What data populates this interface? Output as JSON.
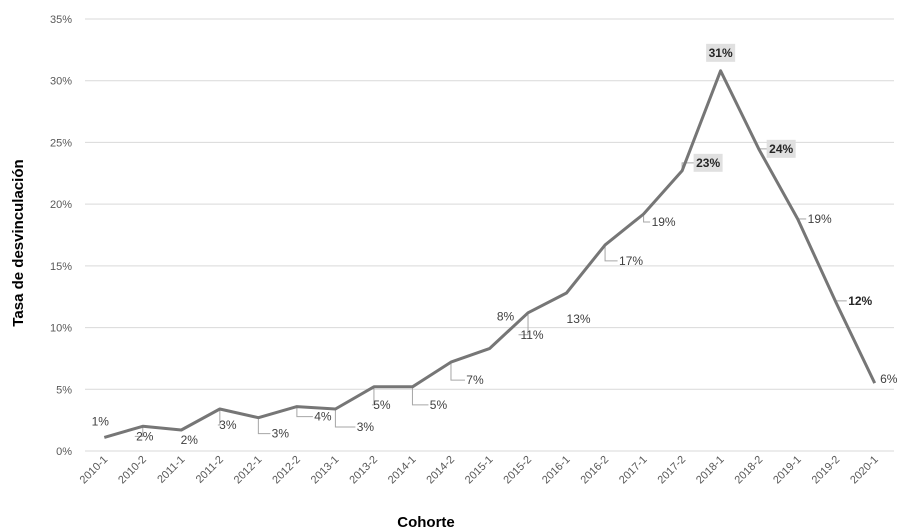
{
  "chart_data": {
    "type": "line",
    "title": "",
    "xlabel": "Cohorte",
    "ylabel": "Tasa de desvinculación",
    "ylim": [
      0,
      35
    ],
    "y_ticks": [
      "0%",
      "5%",
      "10%",
      "15%",
      "20%",
      "25%",
      "30%",
      "35%"
    ],
    "grid": true,
    "categories": [
      "2010-1",
      "2010-2",
      "2011-1",
      "2011-2",
      "2012-1",
      "2012-2",
      "2013-1",
      "2013-2",
      "2014-1",
      "2014-2",
      "2015-1",
      "2015-2",
      "2016-1",
      "2016-2",
      "2017-1",
      "2017-2",
      "2018-1",
      "2018-2",
      "2019-1",
      "2019-2",
      "2020-1"
    ],
    "series": [
      {
        "values": [
          1.1,
          2.0,
          1.7,
          3.4,
          2.7,
          3.6,
          3.4,
          5.2,
          5.2,
          7.2,
          8.3,
          11.2,
          12.8,
          16.7,
          19.2,
          22.7,
          30.8,
          24.4,
          18.8,
          12.0,
          5.5
        ],
        "labels": [
          "1%",
          "2%",
          "2%",
          "3%",
          "3%",
          "4%",
          "3%",
          "5%",
          "5%",
          "7%",
          "8%",
          "11%",
          "13%",
          "17%",
          "19%",
          "23%",
          "31%",
          "24%",
          "19%",
          "12%",
          "6%"
        ]
      }
    ],
    "colors": {
      "line": "#767676",
      "grid": "#d9d9d9",
      "label_box": "#e0e0e0"
    }
  }
}
